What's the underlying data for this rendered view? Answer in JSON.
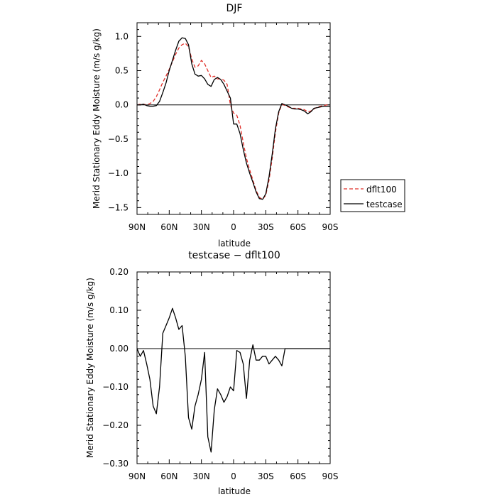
{
  "chart_data": [
    {
      "type": "line",
      "title": "DJF",
      "xlabel": "latitude",
      "ylabel": "Merid Stationary Eddy Moisture (m/s g/kg)",
      "xlim": [
        90,
        -90
      ],
      "ylim": [
        -1.6,
        1.2
      ],
      "x_ticks": [
        90,
        60,
        30,
        0,
        -30,
        -60,
        -90
      ],
      "x_tick_labels": [
        "90N",
        "60N",
        "30N",
        "0",
        "30S",
        "60S",
        "90S"
      ],
      "y_ticks": [
        1.0,
        0.5,
        0.0,
        -0.5,
        -1.0,
        -1.5
      ],
      "y_tick_labels": [
        "1.0",
        "0.5",
        "0.0",
        "−0.5",
        "−1.0",
        "−1.5"
      ],
      "legend": {
        "position": "right",
        "entries": [
          "dflt100",
          "testcase"
        ]
      },
      "series": [
        {
          "name": "dflt100",
          "color": "#e0302a",
          "dash": "dashed",
          "x": [
            90,
            87,
            84,
            81,
            78,
            75,
            72,
            69,
            66,
            63,
            60,
            57,
            54,
            51,
            48,
            45,
            42,
            39,
            36,
            33,
            30,
            27,
            24,
            21,
            18,
            15,
            12,
            9,
            6,
            3,
            0,
            -3,
            -6,
            -9,
            -12,
            -15,
            -18,
            -21,
            -24,
            -27,
            -30,
            -33,
            -36,
            -39,
            -42,
            -45,
            -48,
            -51,
            -54,
            -57,
            -60,
            -63,
            -66,
            -69,
            -72,
            -75,
            -78,
            -81,
            -84,
            -87,
            -90
          ],
          "y": [
            0.0,
            0.01,
            0.01,
            0.0,
            0.02,
            0.05,
            0.12,
            0.22,
            0.33,
            0.42,
            0.52,
            0.63,
            0.74,
            0.83,
            0.88,
            0.9,
            0.85,
            0.67,
            0.55,
            0.57,
            0.65,
            0.6,
            0.5,
            0.4,
            0.42,
            0.38,
            0.38,
            0.36,
            0.3,
            0.0,
            -0.12,
            -0.15,
            -0.3,
            -0.55,
            -0.78,
            -0.95,
            -1.1,
            -1.25,
            -1.35,
            -1.38,
            -1.32,
            -1.1,
            -0.78,
            -0.4,
            -0.12,
            0.01,
            -0.01,
            -0.03,
            -0.05,
            -0.05,
            -0.05,
            -0.06,
            -0.07,
            -0.1,
            -0.09,
            -0.06,
            -0.03,
            -0.02,
            -0.01,
            0.0,
            0.0
          ]
        },
        {
          "name": "testcase",
          "color": "#000000",
          "dash": "solid",
          "x": [
            90,
            87,
            84,
            81,
            78,
            75,
            72,
            69,
            66,
            63,
            60,
            57,
            54,
            51,
            48,
            45,
            42,
            39,
            36,
            33,
            30,
            27,
            24,
            21,
            18,
            15,
            12,
            9,
            6,
            3,
            0,
            -3,
            -6,
            -9,
            -12,
            -15,
            -18,
            -21,
            -24,
            -27,
            -30,
            -33,
            -36,
            -39,
            -42,
            -45,
            -48,
            -51,
            -54,
            -57,
            -60,
            -63,
            -66,
            -69,
            -72,
            -75,
            -78,
            -81,
            -84,
            -87,
            -90
          ],
          "y": [
            0.0,
            0.0,
            0.01,
            -0.01,
            -0.02,
            -0.02,
            -0.01,
            0.05,
            0.18,
            0.32,
            0.5,
            0.65,
            0.8,
            0.93,
            0.98,
            0.97,
            0.88,
            0.6,
            0.45,
            0.42,
            0.43,
            0.38,
            0.3,
            0.27,
            0.37,
            0.4,
            0.37,
            0.3,
            0.2,
            0.1,
            -0.28,
            -0.28,
            -0.42,
            -0.65,
            -0.85,
            -1.0,
            -1.13,
            -1.27,
            -1.37,
            -1.38,
            -1.3,
            -1.05,
            -0.72,
            -0.35,
            -0.1,
            0.02,
            0.0,
            -0.02,
            -0.05,
            -0.06,
            -0.06,
            -0.07,
            -0.09,
            -0.13,
            -0.1,
            -0.05,
            -0.04,
            -0.03,
            -0.02,
            -0.02,
            -0.02
          ]
        }
      ]
    },
    {
      "type": "line",
      "title": "testcase − dflt100",
      "xlabel": "latitude",
      "ylabel": "Merid Stationary Eddy Moisture (m/s g/kg)",
      "xlim": [
        90,
        -90
      ],
      "ylim": [
        -0.3,
        0.2
      ],
      "x_ticks": [
        90,
        60,
        30,
        0,
        -30,
        -60,
        -90
      ],
      "x_tick_labels": [
        "90N",
        "60N",
        "30N",
        "0",
        "30S",
        "60S",
        "90S"
      ],
      "y_ticks": [
        0.2,
        0.1,
        0.0,
        -0.1,
        -0.2,
        -0.3
      ],
      "y_tick_labels": [
        "0.20",
        "0.10",
        "0.00",
        "−0.10",
        "−0.20",
        "−0.30"
      ],
      "series": [
        {
          "color": "#000000",
          "dash": "solid",
          "x": [
            90,
            87,
            84,
            81,
            78,
            75,
            72,
            69,
            66,
            63,
            60,
            57,
            54,
            51,
            48,
            45,
            42,
            39,
            36,
            33,
            30,
            27,
            24,
            21,
            18,
            15,
            12,
            9,
            6,
            3,
            0,
            -3,
            -6,
            -9,
            -12,
            -15,
            -18,
            -21,
            -24,
            -27,
            -30,
            -33,
            -36,
            -39,
            -42,
            -45,
            -48,
            -51,
            -54,
            -57,
            -60,
            -63,
            -66,
            -69,
            -72,
            -75,
            -78,
            -81,
            -84,
            -87,
            -90
          ],
          "y": [
            0.0,
            -0.02,
            -0.005,
            -0.04,
            -0.08,
            -0.15,
            -0.17,
            -0.1,
            0.04,
            0.06,
            0.08,
            0.105,
            0.08,
            0.05,
            0.06,
            -0.02,
            -0.18,
            -0.21,
            -0.15,
            -0.12,
            -0.08,
            -0.01,
            -0.23,
            -0.27,
            -0.16,
            -0.105,
            -0.12,
            -0.14,
            -0.125,
            -0.1,
            -0.11,
            -0.005,
            -0.01,
            -0.04,
            -0.13,
            -0.03,
            0.01,
            -0.03,
            -0.03,
            -0.02,
            -0.02,
            -0.04,
            -0.03,
            -0.02,
            -0.03,
            -0.045,
            0.0,
            0.0,
            0.0,
            0.0,
            0.0,
            0.0,
            0.0,
            0.0,
            0.0,
            0.0,
            0.0,
            0.0,
            0.0,
            0.0,
            0.0
          ]
        }
      ]
    }
  ]
}
